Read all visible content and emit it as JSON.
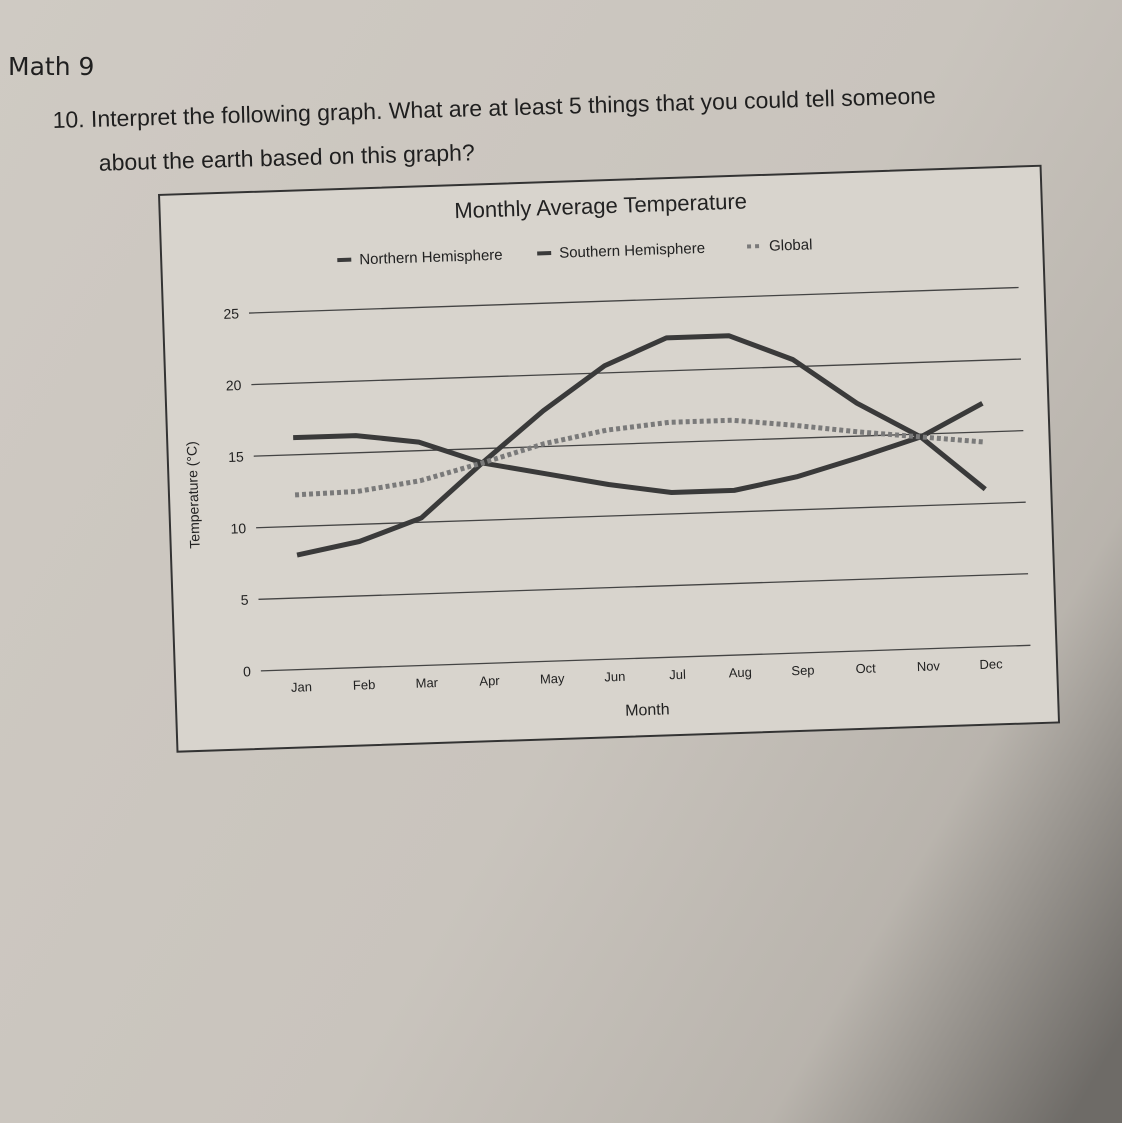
{
  "page": {
    "heading": "Math 9",
    "question_line1": "10. Interpret the following graph. What are at least 5 things that you could tell someone",
    "question_line2": "about the earth based on this graph?"
  },
  "chart_data": {
    "type": "line",
    "title": "Monthly Average Temperature",
    "xlabel": "Month",
    "ylabel": "Temperature (°C)",
    "categories": [
      "Jan",
      "Feb",
      "Mar",
      "Apr",
      "May",
      "Jun",
      "Jul",
      "Aug",
      "Sep",
      "Oct",
      "Nov",
      "Dec"
    ],
    "yticks": [
      0,
      5,
      10,
      15,
      20,
      25
    ],
    "ylim": [
      0,
      25
    ],
    "grid": true,
    "legend": "top",
    "series": [
      {
        "name": "Northern Hemisphere",
        "style": "solid",
        "color": "#3a3a3a",
        "values": [
          8,
          8.8,
          10.3,
          14,
          17.5,
          20.5,
          22.3,
          22.3,
          20.5,
          17.3,
          14.8,
          11
        ]
      },
      {
        "name": "Southern Hemisphere",
        "style": "solid",
        "color": "#3a3a3a",
        "values": [
          16.2,
          16.2,
          15.6,
          14,
          13.1,
          12.2,
          11.5,
          11.5,
          12.3,
          13.5,
          14.8,
          17
        ]
      },
      {
        "name": "Global",
        "style": "dotted",
        "color": "#7a7a7a",
        "values": [
          12.2,
          12.3,
          12.9,
          14,
          15.2,
          16,
          16.4,
          16.4,
          15.9,
          15.3,
          14.8,
          14.3
        ]
      }
    ]
  }
}
